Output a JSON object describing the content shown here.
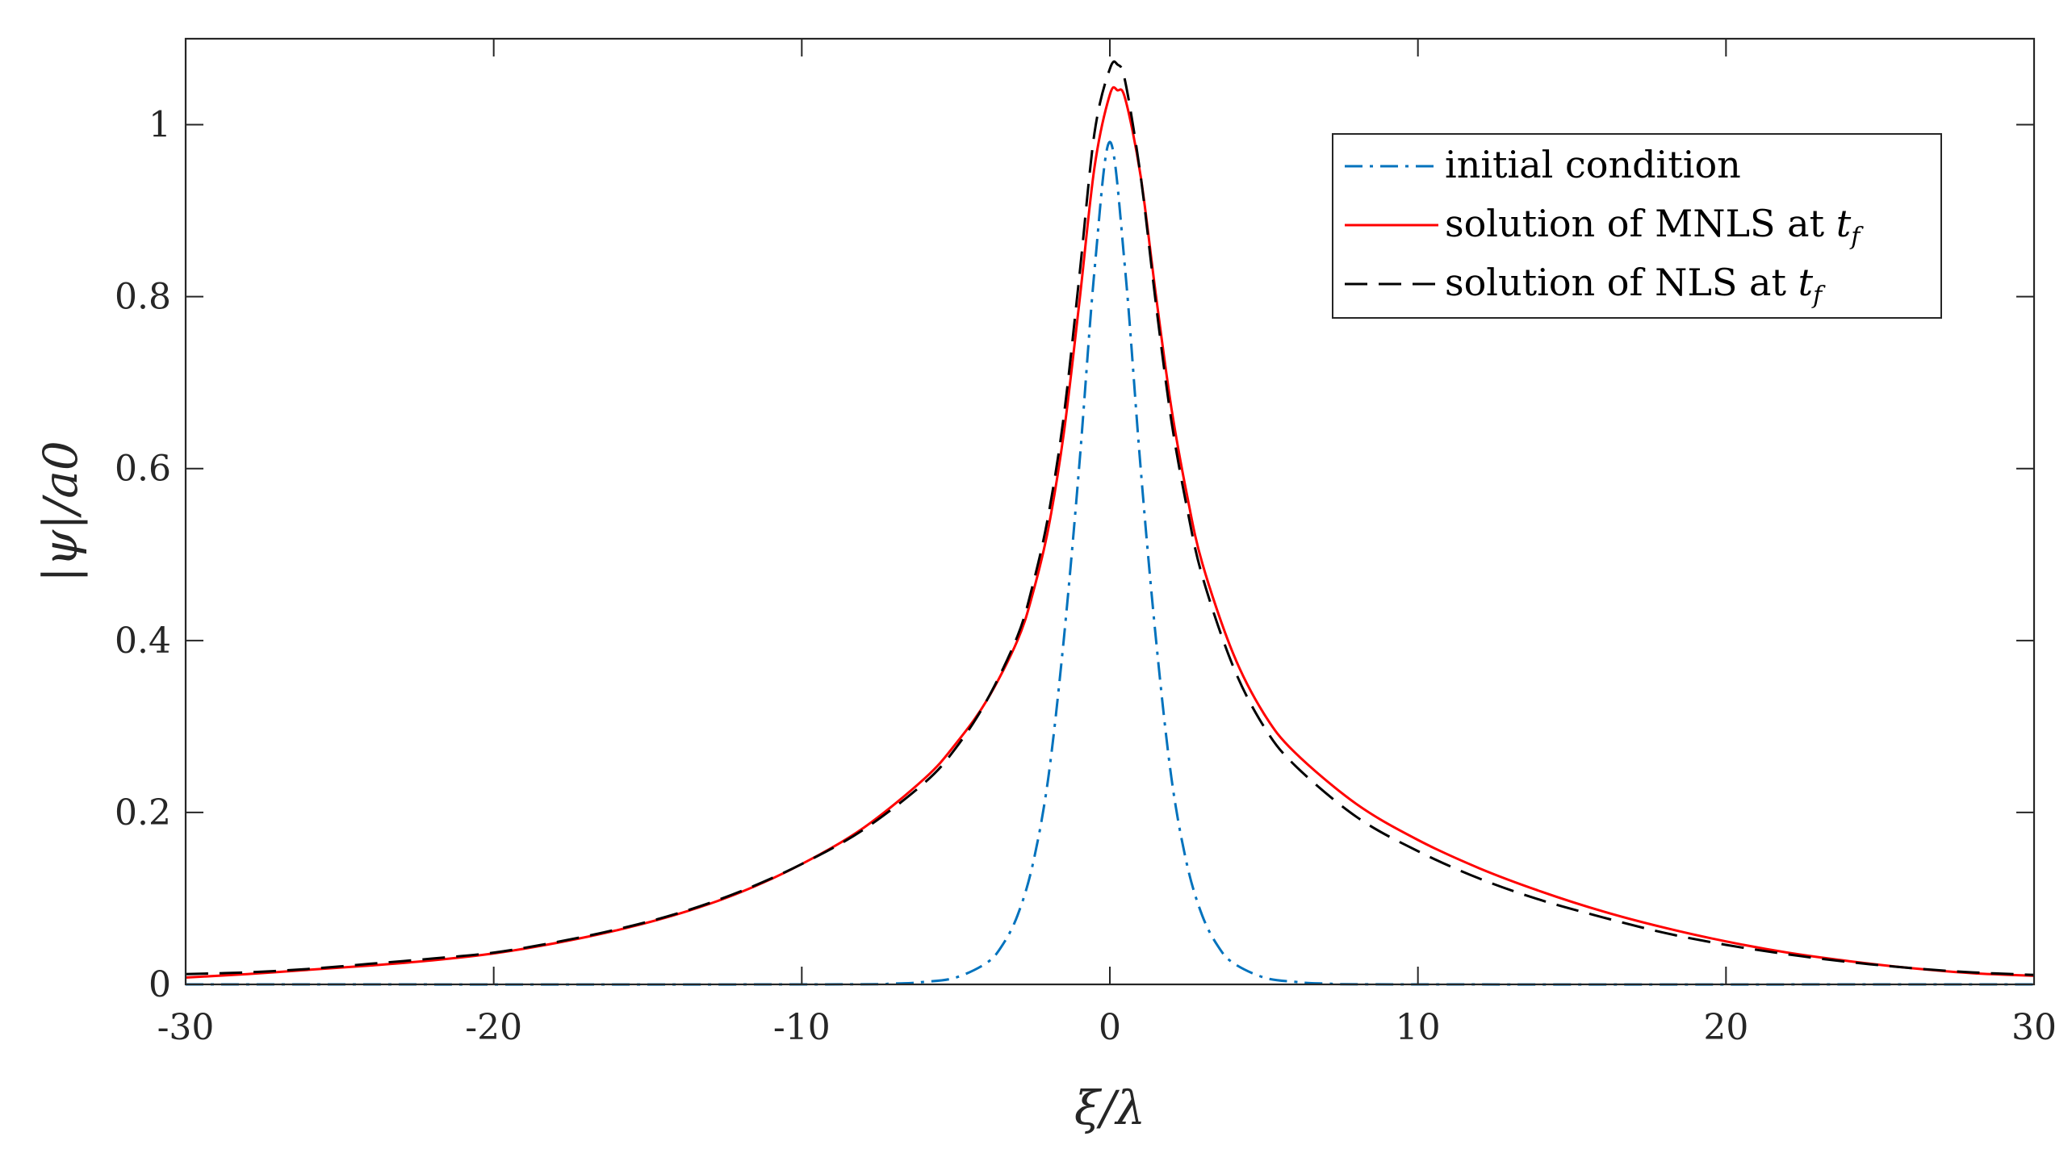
{
  "chart_data": {
    "type": "line",
    "title": "",
    "xlabel": "ξ/λ",
    "ylabel": "|ψ|/a0",
    "xlim": [
      -30,
      30
    ],
    "ylim": [
      0,
      1.1
    ],
    "xticks": [
      "-30",
      "-20",
      "-10",
      "0",
      "10",
      "20",
      "30"
    ],
    "xtick_values": [
      -30,
      -20,
      -10,
      0,
      10,
      20,
      30
    ],
    "yticks": [
      "0",
      "0.2",
      "0.4",
      "0.6",
      "0.8",
      "1"
    ],
    "ytick_values": [
      0,
      0.2,
      0.4,
      0.6,
      0.8,
      1.0
    ],
    "grid": false,
    "legend_position": "top-right",
    "series": [
      {
        "name": "initial condition",
        "legend_text": "initial condition",
        "color": "#0072BD",
        "style": "dashdot",
        "x": [
          -30,
          -10,
          -7,
          -6,
          -5,
          -4,
          -3.5,
          -3,
          -2.5,
          -2,
          -1.5,
          -1,
          -0.5,
          0,
          0.5,
          1,
          1.5,
          2,
          2.5,
          3,
          3.5,
          4,
          5,
          6,
          7,
          10,
          30
        ],
        "y": [
          0,
          0,
          0.001,
          0.003,
          0.008,
          0.025,
          0.045,
          0.08,
          0.14,
          0.24,
          0.4,
          0.6,
          0.83,
          0.98,
          0.83,
          0.6,
          0.4,
          0.24,
          0.14,
          0.08,
          0.045,
          0.025,
          0.008,
          0.003,
          0.001,
          0,
          0
        ]
      },
      {
        "name": "solution of MNLS at t_f",
        "legend_text": "solution of MNLS at ",
        "legend_math": "t",
        "legend_sub": "f",
        "color": "#FF0000",
        "style": "solid",
        "x": [
          -30,
          -28,
          -26,
          -24,
          -22,
          -20,
          -18,
          -16,
          -14,
          -12,
          -10,
          -8,
          -6,
          -5,
          -4,
          -3,
          -2.5,
          -2,
          -1.5,
          -1,
          -0.5,
          0,
          0.25,
          0.5,
          1,
          1.5,
          2,
          2.5,
          3,
          4,
          5,
          6,
          8,
          10,
          12,
          14,
          16,
          18,
          20,
          22,
          24,
          26,
          28,
          30
        ],
        "y": [
          0.008,
          0.012,
          0.017,
          0.022,
          0.028,
          0.036,
          0.048,
          0.063,
          0.082,
          0.107,
          0.14,
          0.182,
          0.24,
          0.28,
          0.33,
          0.4,
          0.455,
          0.53,
          0.64,
          0.79,
          0.95,
          1.035,
          1.04,
          1.03,
          0.94,
          0.8,
          0.67,
          0.57,
          0.49,
          0.385,
          0.315,
          0.27,
          0.21,
          0.168,
          0.135,
          0.108,
          0.085,
          0.066,
          0.05,
          0.037,
          0.027,
          0.019,
          0.013,
          0.01
        ]
      },
      {
        "name": "solution of NLS at t_f",
        "legend_text": "solution of NLS at ",
        "legend_math": "t",
        "legend_sub": "f",
        "color": "#000000",
        "style": "dashed",
        "x": [
          -30,
          -28,
          -26,
          -24,
          -22,
          -20,
          -18,
          -16,
          -14,
          -12,
          -10,
          -8,
          -6,
          -5,
          -4,
          -3,
          -2.5,
          -2,
          -1.5,
          -1,
          -0.5,
          0,
          0.25,
          0.5,
          1,
          1.5,
          2,
          2.5,
          3,
          4,
          5,
          6,
          8,
          10,
          12,
          14,
          16,
          18,
          20,
          22,
          24,
          26,
          28,
          30
        ],
        "y": [
          0.012,
          0.014,
          0.018,
          0.024,
          0.03,
          0.037,
          0.049,
          0.064,
          0.083,
          0.108,
          0.14,
          0.18,
          0.235,
          0.275,
          0.33,
          0.405,
          0.465,
          0.545,
          0.66,
          0.82,
          0.99,
          1.065,
          1.07,
          1.05,
          0.94,
          0.79,
          0.655,
          0.555,
          0.475,
          0.37,
          0.3,
          0.255,
          0.195,
          0.155,
          0.123,
          0.098,
          0.078,
          0.06,
          0.046,
          0.035,
          0.026,
          0.019,
          0.014,
          0.011
        ]
      }
    ]
  }
}
